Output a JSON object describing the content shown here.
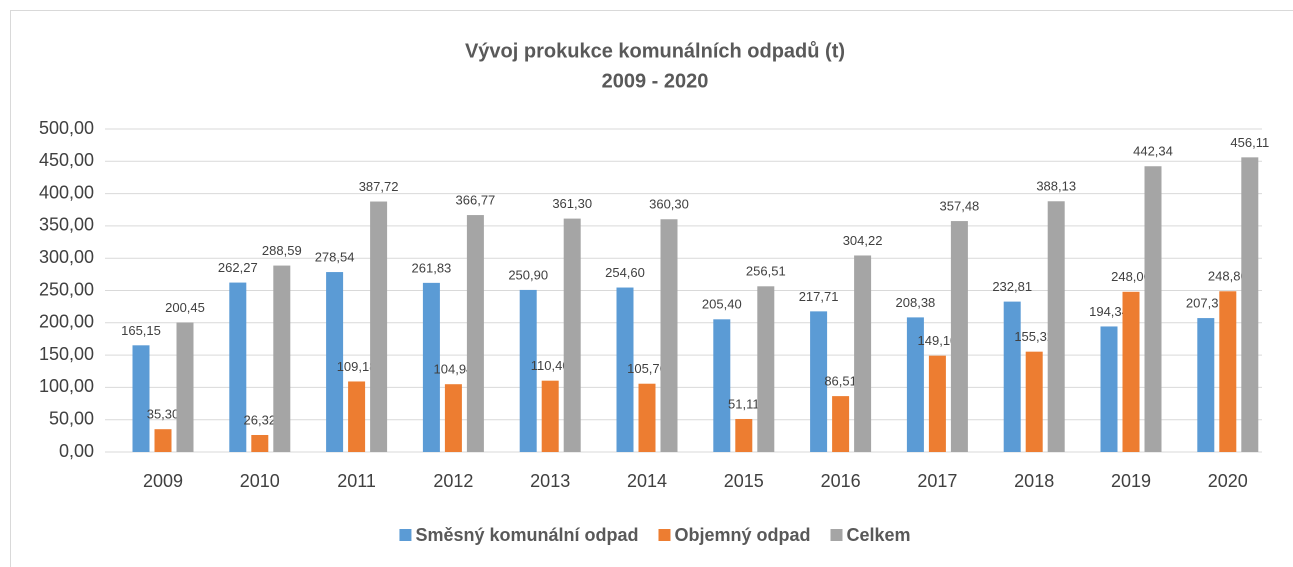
{
  "chart_data": {
    "type": "bar",
    "title": "Vývoj prokukce komunálních odpadů (t)",
    "subtitle": "2009 - 2020",
    "categories": [
      "2009",
      "2010",
      "2011",
      "2012",
      "2013",
      "2014",
      "2015",
      "2016",
      "2017",
      "2018",
      "2019",
      "2020"
    ],
    "series": [
      {
        "name": "Směsný komunální odpad",
        "color": "#5b9bd5",
        "values": [
          165.15,
          262.27,
          278.54,
          261.83,
          250.9,
          254.6,
          205.4,
          217.71,
          208.38,
          232.81,
          194.34,
          207.31
        ],
        "value_labels": [
          "165,15",
          "262,27",
          "278,54",
          "261,83",
          "250,90",
          "254,60",
          "205,40",
          "217,71",
          "208,38",
          "232,81",
          "194,34",
          "207,31"
        ]
      },
      {
        "name": "Objemný odpad",
        "color": "#ed7d31",
        "values": [
          35.3,
          26.32,
          109.18,
          104.94,
          110.4,
          105.7,
          51.11,
          86.51,
          149.1,
          155.32,
          248.0,
          248.8
        ],
        "value_labels": [
          "35,30",
          "26,32",
          "109,18",
          "104,94",
          "110,40",
          "105,70",
          "51,11",
          "86,51",
          "149,10",
          "155,32",
          "248,00",
          "248,80"
        ]
      },
      {
        "name": "Celkem",
        "color": "#a5a5a5",
        "values": [
          200.45,
          288.59,
          387.72,
          366.77,
          361.3,
          360.3,
          256.51,
          304.22,
          357.48,
          388.13,
          442.34,
          456.11
        ],
        "value_labels": [
          "200,45",
          "288,59",
          "387,72",
          "366,77",
          "361,30",
          "360,30",
          "256,51",
          "304,22",
          "357,48",
          "388,13",
          "442,34",
          "456,11"
        ]
      }
    ],
    "ylim": [
      0,
      500
    ],
    "yticks": [
      {
        "value": 0,
        "label": "0,00"
      },
      {
        "value": 50,
        "label": "50,00"
      },
      {
        "value": 100,
        "label": "100,00"
      },
      {
        "value": 150,
        "label": "150,00"
      },
      {
        "value": 200,
        "label": "200,00"
      },
      {
        "value": 250,
        "label": "250,00"
      },
      {
        "value": 300,
        "label": "300,00"
      },
      {
        "value": 350,
        "label": "350,00"
      },
      {
        "value": 400,
        "label": "400,00"
      },
      {
        "value": 450,
        "label": "450,00"
      },
      {
        "value": 500,
        "label": "500,00"
      }
    ],
    "grid": true,
    "legend": "bottom"
  }
}
